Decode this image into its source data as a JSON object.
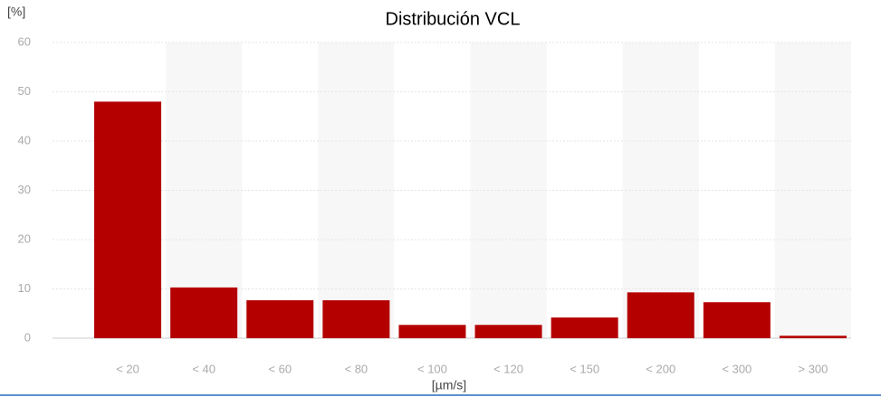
{
  "chart_data": {
    "type": "bar",
    "title": "Distribución VCL",
    "y_label": "[%]",
    "x_label": "[µm/s]",
    "categories": [
      "< 20",
      "< 40",
      "< 60",
      "< 80",
      "< 100",
      "< 120",
      "< 150",
      "< 200",
      "< 300",
      "> 300"
    ],
    "values": [
      48,
      10.3,
      7.7,
      7.7,
      2.7,
      2.7,
      4.2,
      9.3,
      7.3,
      0.5
    ],
    "color": "#b50000",
    "ylim": [
      0,
      60
    ],
    "yticks": [
      0,
      10,
      20,
      30,
      40,
      50,
      60
    ],
    "grid": true
  }
}
